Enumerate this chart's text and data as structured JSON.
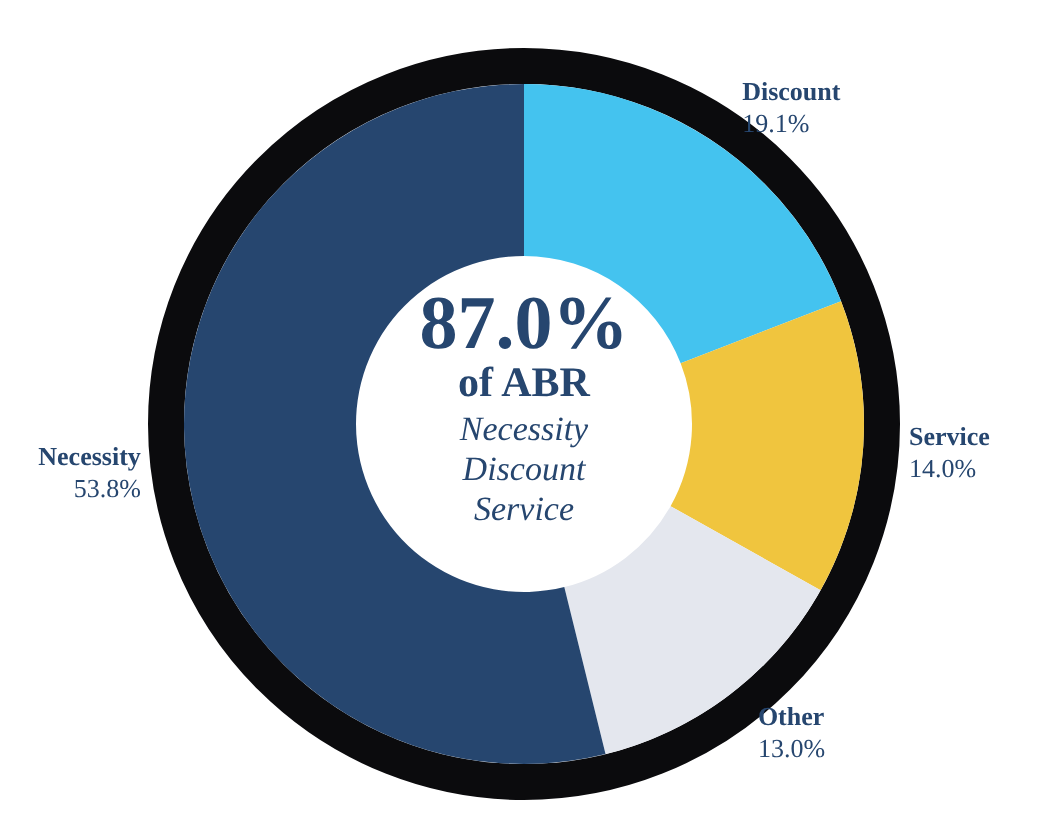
{
  "chart_data": {
    "type": "donut",
    "categories": [
      "Discount",
      "Service",
      "Other",
      "Necessity"
    ],
    "values": [
      19.1,
      14.0,
      13.0,
      53.8
    ],
    "value_labels": [
      "19.1%",
      "14.0%",
      "13.0%",
      "53.8%"
    ],
    "colors": [
      "#44c3ef",
      "#f0c53e",
      "#e4e7ee",
      "#26466f"
    ],
    "annotations": [
      "87.0%",
      "of ABR",
      "Necessity",
      "Discount",
      "Service"
    ],
    "legend": false
  }
}
